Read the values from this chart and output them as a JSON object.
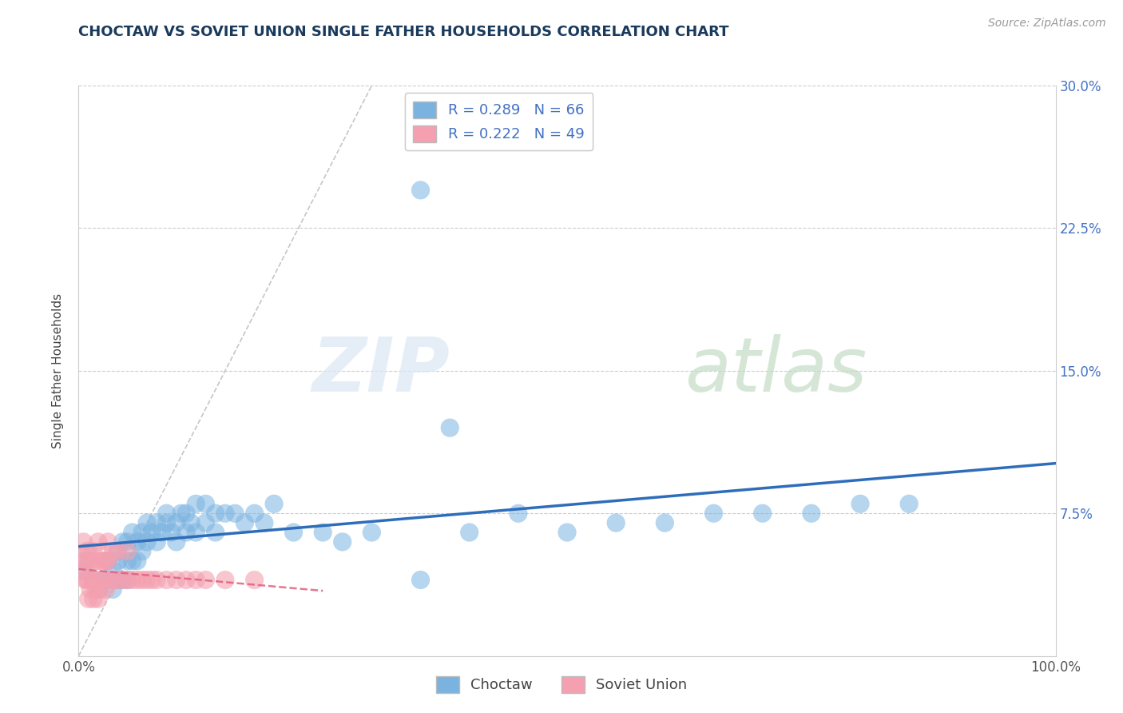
{
  "title": "CHOCTAW VS SOVIET UNION SINGLE FATHER HOUSEHOLDS CORRELATION CHART",
  "source": "Source: ZipAtlas.com",
  "ylabel": "Single Father Households",
  "xlim": [
    0,
    1.0
  ],
  "ylim": [
    0,
    0.3
  ],
  "yticks": [
    0.0,
    0.075,
    0.15,
    0.225,
    0.3
  ],
  "yticklabels": [
    "",
    "7.5%",
    "15.0%",
    "22.5%",
    "30.0%"
  ],
  "choctaw_color": "#7ab3e0",
  "soviet_color": "#f4a0b0",
  "regression_choctaw_color": "#2e6dba",
  "regression_soviet_color": "#e06080",
  "diagonal_color": "#c0c0c0",
  "grid_color": "#cccccc",
  "background": "#ffffff",
  "title_color": "#1a3a5c",
  "ytick_color": "#4472c4",
  "xtick_color": "#555555",
  "legend_R": [
    0.289,
    0.222
  ],
  "legend_N": [
    66,
    49
  ],
  "choctaw_x": [
    0.005,
    0.01,
    0.015,
    0.02,
    0.025,
    0.03,
    0.03,
    0.035,
    0.035,
    0.04,
    0.04,
    0.04,
    0.045,
    0.045,
    0.05,
    0.05,
    0.05,
    0.055,
    0.055,
    0.06,
    0.06,
    0.065,
    0.065,
    0.07,
    0.07,
    0.075,
    0.08,
    0.08,
    0.085,
    0.09,
    0.09,
    0.095,
    0.1,
    0.1,
    0.105,
    0.11,
    0.11,
    0.115,
    0.12,
    0.12,
    0.13,
    0.13,
    0.14,
    0.14,
    0.15,
    0.16,
    0.17,
    0.18,
    0.19,
    0.2,
    0.22,
    0.25,
    0.27,
    0.3,
    0.35,
    0.38,
    0.4,
    0.45,
    0.5,
    0.55,
    0.6,
    0.65,
    0.7,
    0.75,
    0.8,
    0.85
  ],
  "choctaw_y": [
    0.045,
    0.05,
    0.04,
    0.035,
    0.04,
    0.04,
    0.05,
    0.035,
    0.045,
    0.04,
    0.05,
    0.055,
    0.04,
    0.06,
    0.04,
    0.05,
    0.06,
    0.05,
    0.065,
    0.05,
    0.06,
    0.055,
    0.065,
    0.06,
    0.07,
    0.065,
    0.06,
    0.07,
    0.065,
    0.07,
    0.075,
    0.065,
    0.06,
    0.07,
    0.075,
    0.065,
    0.075,
    0.07,
    0.065,
    0.08,
    0.07,
    0.08,
    0.065,
    0.075,
    0.075,
    0.075,
    0.07,
    0.075,
    0.07,
    0.08,
    0.065,
    0.065,
    0.06,
    0.065,
    0.04,
    0.12,
    0.065,
    0.075,
    0.065,
    0.07,
    0.07,
    0.075,
    0.075,
    0.075,
    0.08,
    0.08
  ],
  "choctaw_outlier_x": [
    0.35
  ],
  "choctaw_outlier_y": [
    0.245
  ],
  "soviet_x": [
    0.005,
    0.005,
    0.005,
    0.007,
    0.007,
    0.008,
    0.008,
    0.01,
    0.01,
    0.01,
    0.012,
    0.012,
    0.015,
    0.015,
    0.015,
    0.018,
    0.018,
    0.02,
    0.02,
    0.02,
    0.022,
    0.022,
    0.025,
    0.025,
    0.028,
    0.028,
    0.03,
    0.03,
    0.03,
    0.035,
    0.035,
    0.04,
    0.04,
    0.045,
    0.05,
    0.05,
    0.055,
    0.06,
    0.065,
    0.07,
    0.075,
    0.08,
    0.09,
    0.1,
    0.11,
    0.12,
    0.13,
    0.15,
    0.18
  ],
  "soviet_y": [
    0.045,
    0.05,
    0.06,
    0.04,
    0.05,
    0.04,
    0.055,
    0.03,
    0.04,
    0.055,
    0.035,
    0.05,
    0.03,
    0.04,
    0.055,
    0.035,
    0.05,
    0.03,
    0.04,
    0.06,
    0.035,
    0.05,
    0.04,
    0.05,
    0.035,
    0.05,
    0.04,
    0.05,
    0.06,
    0.04,
    0.055,
    0.04,
    0.055,
    0.04,
    0.04,
    0.055,
    0.04,
    0.04,
    0.04,
    0.04,
    0.04,
    0.04,
    0.04,
    0.04,
    0.04,
    0.04,
    0.04,
    0.04,
    0.04
  ]
}
